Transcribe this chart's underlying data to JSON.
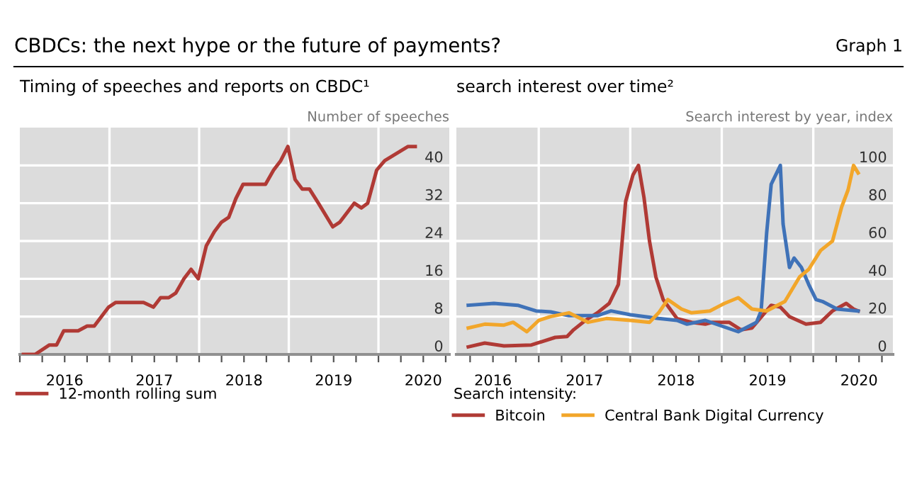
{
  "chart_data": [
    {
      "type": "line",
      "title": "Timing of speeches and reports on CBDC¹",
      "ylabel": "Number of speeches",
      "annotations": [
        "CBDCs: the next hype or the future of payments?",
        "Graph 1"
      ],
      "xlim": [
        2016.0,
        2020.79
      ],
      "ylim": [
        0,
        48
      ],
      "yticks": [
        0,
        8,
        16,
        24,
        32,
        40
      ],
      "xticks": [
        {
          "value": 2016.0,
          "label": null
        },
        {
          "value": 2016.25,
          "label": null
        },
        {
          "value": 2016.5,
          "label": "2016"
        },
        {
          "value": 2016.75,
          "label": null
        },
        {
          "value": 2017.0,
          "label": null
        },
        {
          "value": 2017.25,
          "label": null
        },
        {
          "value": 2017.5,
          "label": "2017"
        },
        {
          "value": 2017.75,
          "label": null
        },
        {
          "value": 2018.0,
          "label": null
        },
        {
          "value": 2018.25,
          "label": null
        },
        {
          "value": 2018.5,
          "label": "2018"
        },
        {
          "value": 2018.75,
          "label": null
        },
        {
          "value": 2019.0,
          "label": null
        },
        {
          "value": 2019.25,
          "label": null
        },
        {
          "value": 2019.5,
          "label": "2019"
        },
        {
          "value": 2019.75,
          "label": null
        },
        {
          "value": 2020.0,
          "label": null
        },
        {
          "value": 2020.25,
          "label": null
        },
        {
          "value": 2020.5,
          "label": "2020"
        },
        {
          "value": 2020.75,
          "label": null
        }
      ],
      "grid": "y",
      "legend": "bottom",
      "marker": "none",
      "line_style": "solid",
      "ref_lines": [
        {
          "axis": "x",
          "value": 2017.0,
          "color": "#ffffff"
        },
        {
          "axis": "x",
          "value": 2018.0,
          "color": "#ffffff"
        },
        {
          "axis": "x",
          "value": 2019.0,
          "color": "#ffffff"
        },
        {
          "axis": "x",
          "value": 2020.0,
          "color": "#ffffff"
        }
      ],
      "series": [
        {
          "name": "12-month rolling sum",
          "color": "#b03a35",
          "x": [
            2016.04,
            2016.17,
            2016.33,
            2016.41,
            2016.49,
            2016.65,
            2016.75,
            2016.83,
            2016.99,
            2017.07,
            2017.38,
            2017.49,
            2017.57,
            2017.66,
            2017.74,
            2017.83,
            2017.91,
            2017.99,
            2018.08,
            2018.17,
            2018.25,
            2018.33,
            2018.41,
            2018.49,
            2018.74,
            2018.83,
            2018.91,
            2018.99,
            2019.07,
            2019.15,
            2019.23,
            2019.33,
            2019.49,
            2019.57,
            2019.73,
            2019.81,
            2019.88,
            2019.98,
            2020.07,
            2020.33,
            2020.41
          ],
          "values": [
            0,
            0,
            2,
            2,
            5,
            5,
            6,
            6,
            10,
            11,
            11,
            10,
            12,
            12,
            13,
            16,
            18,
            16,
            23,
            26,
            28,
            29,
            33,
            36,
            36,
            39,
            41,
            44,
            37,
            35,
            35,
            32,
            27,
            28,
            32,
            31,
            32,
            39,
            41,
            44,
            44
          ]
        }
      ]
    },
    {
      "type": "line",
      "title": "search interest over time²",
      "ylabel": "Search interest by year, index",
      "legend_title": "Search intensity:",
      "xlim": [
        2016.1,
        2020.87
      ],
      "ylim": [
        0,
        120
      ],
      "yticks": [
        0,
        20,
        40,
        60,
        80,
        100
      ],
      "xticks": [
        {
          "value": 2016.25,
          "label": null
        },
        {
          "value": 2016.5,
          "label": "2016"
        },
        {
          "value": 2016.75,
          "label": null
        },
        {
          "value": 2017.0,
          "label": null
        },
        {
          "value": 2017.25,
          "label": null
        },
        {
          "value": 2017.5,
          "label": "2017"
        },
        {
          "value": 2017.75,
          "label": null
        },
        {
          "value": 2018.0,
          "label": null
        },
        {
          "value": 2018.25,
          "label": null
        },
        {
          "value": 2018.5,
          "label": "2018"
        },
        {
          "value": 2018.75,
          "label": null
        },
        {
          "value": 2019.0,
          "label": null
        },
        {
          "value": 2019.25,
          "label": null
        },
        {
          "value": 2019.5,
          "label": "2019"
        },
        {
          "value": 2019.75,
          "label": null
        },
        {
          "value": 2020.0,
          "label": null
        },
        {
          "value": 2020.25,
          "label": null
        },
        {
          "value": 2020.5,
          "label": "2020"
        },
        {
          "value": 2020.75,
          "label": null
        }
      ],
      "grid": "y",
      "legend": "bottom",
      "marker": "none",
      "line_style": "solid",
      "ref_lines": [
        {
          "axis": "x",
          "value": 2017.0,
          "color": "#ffffff"
        },
        {
          "axis": "x",
          "value": 2018.0,
          "color": "#ffffff"
        },
        {
          "axis": "x",
          "value": 2019.0,
          "color": "#ffffff"
        },
        {
          "axis": "x",
          "value": 2020.0,
          "color": "#ffffff"
        }
      ],
      "series": [
        {
          "name": "Bitcoin",
          "color": "#b03a35",
          "x": [
            2016.23,
            2016.41,
            2016.62,
            2016.92,
            2017.05,
            2017.18,
            2017.31,
            2017.38,
            2017.51,
            2017.64,
            2017.77,
            2017.87,
            2017.95,
            2018.03,
            2018.09,
            2018.15,
            2018.21,
            2018.28,
            2018.36,
            2018.51,
            2018.67,
            2018.82,
            2018.9,
            2018.97,
            2019.08,
            2019.21,
            2019.33,
            2019.54,
            2019.64,
            2019.74,
            2019.92,
            2020.08,
            2020.21,
            2020.36,
            2020.44,
            2020.49
          ],
          "values": [
            4,
            6,
            4.5,
            5,
            7,
            9,
            9.5,
            13,
            18,
            22,
            27,
            37,
            81,
            95,
            100,
            83,
            60,
            41,
            29,
            19,
            17,
            16,
            17,
            17,
            17,
            13,
            14,
            26,
            25,
            20,
            16,
            17,
            23,
            27,
            24,
            23
          ]
        },
        {
          "color": "#3f72b8",
          "x": [
            2016.23,
            2016.51,
            2016.77,
            2016.97,
            2017.13,
            2017.33,
            2017.64,
            2017.79,
            2018.0,
            2018.31,
            2018.51,
            2018.62,
            2018.82,
            2019.0,
            2019.18,
            2019.38,
            2019.43,
            2019.49,
            2019.54,
            2019.64,
            2019.67,
            2019.74,
            2019.79,
            2019.87,
            2019.95,
            2020.03,
            2020.1,
            2020.26,
            2020.49
          ],
          "values": [
            26,
            27,
            26,
            23,
            22.5,
            20.5,
            20.5,
            23,
            21,
            19,
            18,
            16,
            18,
            15,
            12,
            17,
            23,
            64,
            90,
            100,
            69,
            46,
            51,
            46,
            37,
            29,
            28,
            24,
            23
          ]
        },
        {
          "name": "Central Bank Digital Currency",
          "color": "#f2a62a",
          "x": [
            2016.23,
            2016.41,
            2016.62,
            2016.72,
            2016.87,
            2017.0,
            2017.13,
            2017.33,
            2017.54,
            2017.74,
            2018.0,
            2018.21,
            2018.31,
            2018.41,
            2018.56,
            2018.67,
            2018.87,
            2019.03,
            2019.18,
            2019.33,
            2019.49,
            2019.69,
            2019.85,
            2019.95,
            2020.08,
            2020.21,
            2020.31,
            2020.38,
            2020.44,
            2020.49
          ],
          "values": [
            14,
            16,
            15.5,
            17,
            12,
            18,
            20,
            22,
            17,
            19,
            18,
            17,
            22,
            29,
            24,
            22,
            23,
            27,
            30,
            24,
            23,
            28,
            41,
            45,
            55,
            60,
            78,
            87,
            100,
            96
          ]
        }
      ]
    }
  ]
}
